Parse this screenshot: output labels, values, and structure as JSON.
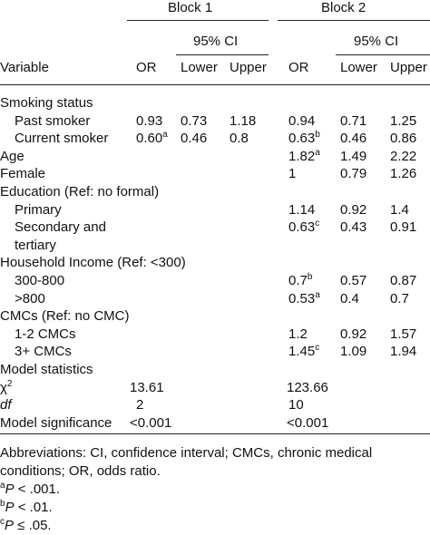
{
  "header": {
    "block1": "Block 1",
    "block2": "Block 2",
    "ci1": "95% CI",
    "ci2": "95% CI",
    "columns": [
      "Variable",
      "OR",
      "Lower",
      "Upper",
      "OR",
      "Lower",
      "Upper"
    ]
  },
  "table": {
    "rows": [
      {
        "label": "Smoking status"
      },
      {
        "label": "Past smoker",
        "b1": [
          "0.93",
          "0.73",
          "1.18"
        ],
        "b2": [
          "0.94",
          "0.71",
          "1.25"
        ]
      },
      {
        "label": "Current smoker",
        "b1": [
          {
            "text": "0.60",
            "sup": "a"
          },
          "0.46",
          "0.8"
        ],
        "b2": [
          {
            "text": "0.63",
            "sup": "b"
          },
          "0.46",
          "0.86"
        ]
      },
      {
        "label": "Age",
        "b2": [
          {
            "text": "1.82",
            "sup": "a"
          },
          "1.49",
          "2.22"
        ]
      },
      {
        "label": "Female",
        "b2": [
          "1",
          "0.79",
          "1.26"
        ]
      },
      {
        "label": "Education (Ref: no formal)"
      },
      {
        "label": "Primary",
        "b2": [
          "1.14",
          "0.92",
          "1.4"
        ]
      },
      {
        "label": "Secondary and tertiary",
        "b2": [
          {
            "text": "0.63",
            "sup": "c"
          },
          "0.43",
          "0.91"
        ]
      },
      {
        "label": "Household Income (Ref: <300)"
      },
      {
        "label": "300-800",
        "b2": [
          {
            "text": "0.7",
            "sup": "b"
          },
          "0.57",
          "0.87"
        ]
      },
      {
        "label": ">800",
        "b2": [
          {
            "text": "0.53",
            "sup": "a"
          },
          "0.4",
          "0.7"
        ]
      },
      {
        "label": "CMCs (Ref: no CMC)"
      },
      {
        "label": "1-2 CMCs",
        "b2": [
          "1.2",
          "0.92",
          "1.57"
        ]
      },
      {
        "label": "3+ CMCs",
        "b2": [
          {
            "text": "1.45",
            "sup": "c"
          },
          "1.09",
          "1.94"
        ]
      },
      {
        "label": "Model statistics"
      },
      {
        "label": {
          "text": "χ",
          "sup": "2"
        },
        "b1": [
          "13.61"
        ],
        "b2": [
          "123.66"
        ]
      },
      {
        "label": "df",
        "b1": [
          "2"
        ],
        "b2": [
          "10"
        ]
      },
      {
        "label": "Model significance",
        "b1": [
          "<0.001"
        ],
        "b2": [
          "<0.001"
        ]
      }
    ]
  },
  "footnotes": {
    "abbreviations": "Abbreviations: CI, confidence interval; CMCs, chronic medical conditions; OR, odds ratio.",
    "notes": [
      {
        "mark": "a",
        "p": "P",
        "text": " < .001."
      },
      {
        "mark": "b",
        "p": "P",
        "text": " < .01."
      },
      {
        "mark": "c",
        "p": "P",
        "text": " ≤ .05."
      }
    ]
  }
}
